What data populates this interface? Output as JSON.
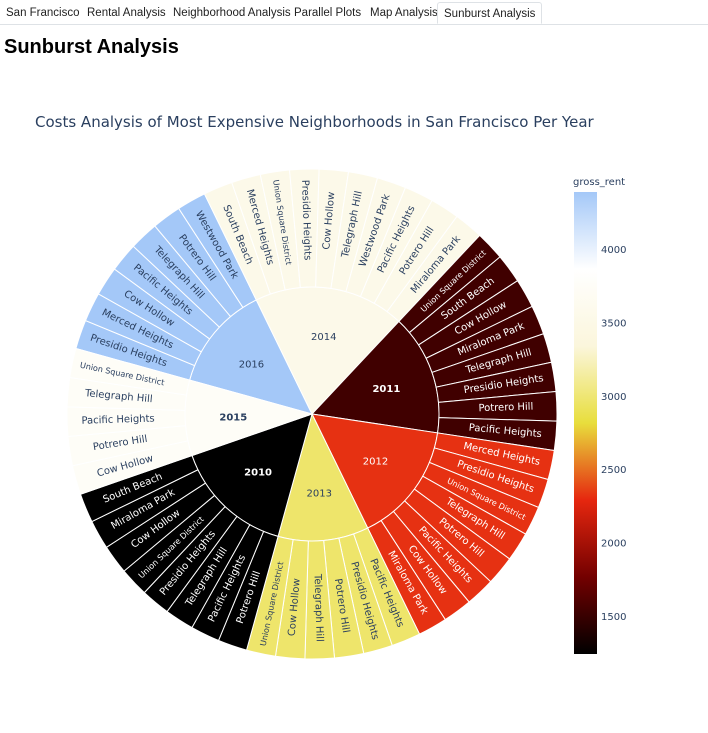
{
  "tabs": [
    {
      "label": "San Francisco",
      "active": false
    },
    {
      "label": "Rental Analysis",
      "active": false
    },
    {
      "label": "Neighborhood Analysis",
      "active": false
    },
    {
      "label": "Parallel Plots",
      "active": false
    },
    {
      "label": "Map Analysis",
      "active": false
    },
    {
      "label": "Sunburst Analysis",
      "active": true
    }
  ],
  "page_title": "Sunburst Analysis",
  "chart_data": {
    "type": "sunburst",
    "title": "Costs Analysis of Most Expensive Neighborhoods in San Francisco Per Year",
    "color_metric": "gross_rent",
    "colorbar": {
      "title": "gross_rent",
      "ticks": [
        1500,
        2000,
        2500,
        3000,
        3500,
        4000
      ],
      "range": [
        1240,
        4390
      ]
    },
    "colorscale": [
      "#000000",
      "#730000",
      "#e6270f",
      "#e8de3c",
      "#fbf6dc",
      "#ffffff",
      "#a4c8f8"
    ],
    "years": [
      {
        "label": "2016",
        "gross_rent": 4390,
        "children": [
          "Presidio Heights",
          "Merced Heights",
          "Cow Hollow",
          "Pacific Heights",
          "Telegraph Hill",
          "Potrero Hill",
          "Westwood Park"
        ]
      },
      {
        "label": "2014",
        "gross_rent": 3530,
        "children": [
          "South Beach",
          "Merced Heights",
          "Union Square District",
          "Presidio Heights",
          "Cow Hollow",
          "Telegraph Hill",
          "Westwood Park",
          "Pacific Heights",
          "Potrero Hill",
          "Miraloma Park"
        ]
      },
      {
        "label": "2011",
        "gross_rent": 1530,
        "children": [
          "Union Square District",
          "South Beach",
          "Cow Hollow",
          "Miraloma Park",
          "Telegraph Hill",
          "Presidio Heights",
          "Potrero Hill",
          "Pacific Heights"
        ]
      },
      {
        "label": "2012",
        "gross_rent": 2320,
        "children": [
          "Merced Heights",
          "Presidio Heights",
          "Union Square District",
          "Telegraph Hill",
          "Potrero Hill",
          "Pacific Heights",
          "Cow Hollow",
          "Miraloma Park"
        ]
      },
      {
        "label": "2013",
        "gross_rent": 2970,
        "children": [
          "Pacific Heights",
          "Presidio Heights",
          "Potrero Hill",
          "Telegraph Hill",
          "Cow Hollow",
          "Union Square District"
        ]
      },
      {
        "label": "2010",
        "gross_rent": 1240,
        "children": [
          "Potrero Hill",
          "Pacific Heights",
          "Telegraph Hill",
          "Presidio Heights",
          "Union Square District",
          "Cow Hollow",
          "Miraloma Park",
          "South Beach"
        ]
      },
      {
        "label": "2015",
        "gross_rent": 3740,
        "children": [
          "Cow Hollow",
          "Potrero Hill",
          "Pacific Heights",
          "Telegraph Hill",
          "Union Square District"
        ]
      }
    ]
  }
}
